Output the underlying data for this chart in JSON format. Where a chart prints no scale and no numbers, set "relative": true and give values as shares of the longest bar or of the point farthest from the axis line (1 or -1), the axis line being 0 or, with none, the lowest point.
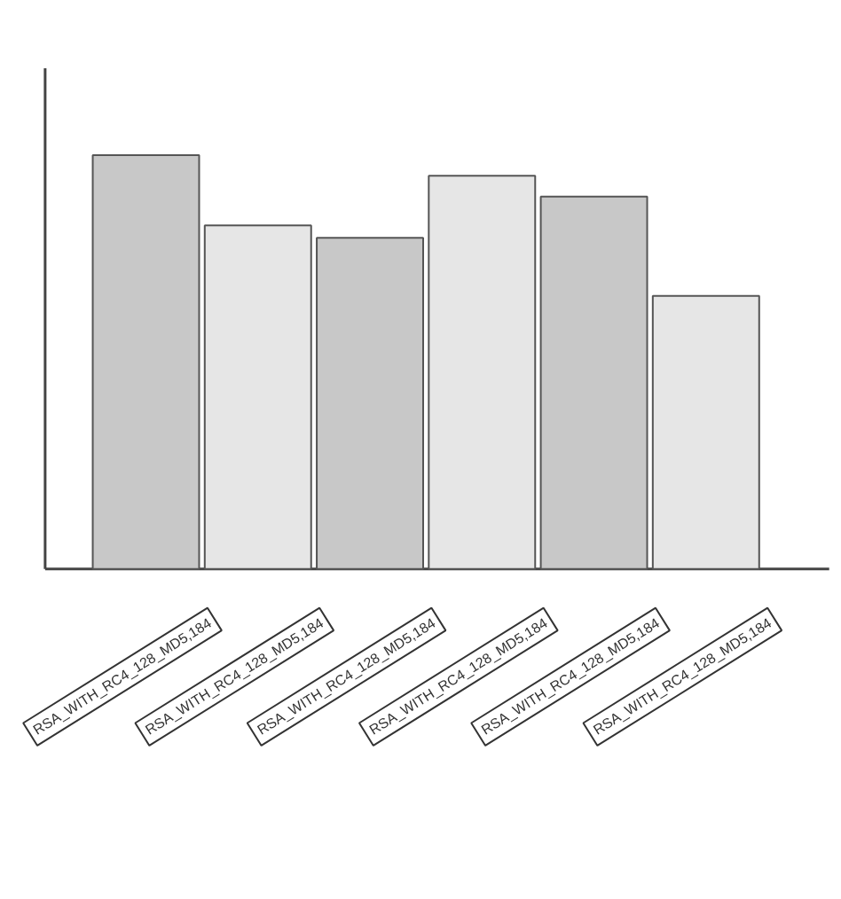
{
  "chart_data": {
    "type": "bar",
    "relative": true,
    "categories": [
      "RSA_WITH_RC4_128_MD5,184",
      "RSA_WITH_RC4_128_MD5,184",
      "RSA_WITH_RC4_128_MD5,184",
      "RSA_WITH_RC4_128_MD5,184",
      "RSA_WITH_RC4_128_MD5,184",
      "RSA_WITH_RC4_128_MD5,184"
    ],
    "values": [
      1,
      0.83,
      0.8,
      0.95,
      0.9,
      0.66
    ],
    "colors": [
      "#c8c8c8",
      "#e6e6e6",
      "#c8c8c8",
      "#e6e6e6",
      "#c8c8c8",
      "#e6e6e6"
    ]
  }
}
